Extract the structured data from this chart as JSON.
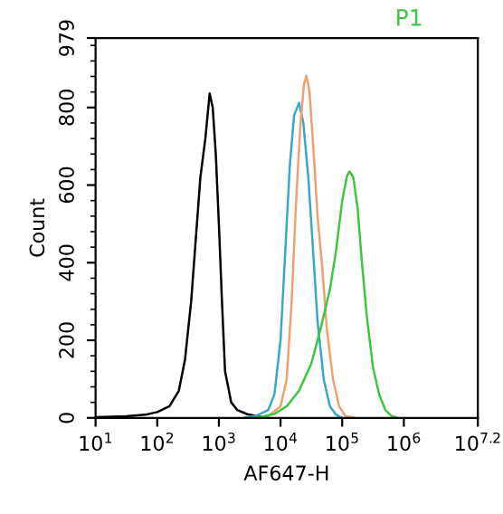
{
  "chart_data": {
    "type": "line",
    "xlabel": "AF647-H",
    "ylabel": "Count",
    "log": "x",
    "grid": false,
    "legend": false,
    "xlim": [
      10,
      15848932
    ],
    "ylim": [
      0,
      979
    ],
    "xticks": [
      {
        "value": 10,
        "label": "10$^{1}$"
      },
      {
        "value": 100,
        "label": "10$^{2}$"
      },
      {
        "value": 1000,
        "label": "10$^{3}$"
      },
      {
        "value": 10000,
        "label": "10$^{4}$"
      },
      {
        "value": 100000,
        "label": "10$^{5}$"
      },
      {
        "value": 1000000,
        "label": "10$^{6}$"
      },
      {
        "value": 15848932,
        "label": "10$^{7.2}$"
      }
    ],
    "yticks": [
      0,
      200,
      400,
      600,
      800,
      979
    ],
    "series": [
      {
        "color": "#000000",
        "x": [
          10,
          31.6,
          63.1,
          100,
          158,
          224,
          282,
          355,
          417,
          501,
          603,
          708,
          794,
          891,
          1000,
          1122,
          1259,
          1585,
          1995,
          2818,
          3981,
          6310
        ],
        "values": [
          2,
          4,
          8,
          15,
          30,
          70,
          150,
          300,
          450,
          620,
          720,
          836,
          800,
          680,
          500,
          300,
          120,
          40,
          20,
          10,
          5,
          0
        ]
      },
      {
        "color": "#3aa8c8",
        "x": [
          2512,
          3981,
          6310,
          7943,
          10000,
          11220,
          12589,
          14125,
          16596,
          19953,
          23442,
          28184,
          33113,
          39811,
          50119,
          63096,
          79433,
          100000
        ],
        "values": [
          0,
          5,
          20,
          60,
          200,
          350,
          500,
          650,
          780,
          812,
          760,
          620,
          450,
          250,
          100,
          30,
          8,
          0
        ]
      },
      {
        "color": "#f0a070",
        "x": [
          3981,
          6310,
          10000,
          12589,
          15136,
          17783,
          20893,
          23988,
          26303,
          29512,
          33884,
          39811,
          47863,
          56234,
          70795,
          89125,
          112202,
          158489
        ],
        "values": [
          0,
          5,
          30,
          100,
          300,
          550,
          750,
          860,
          882,
          840,
          700,
          520,
          380,
          230,
          100,
          30,
          5,
          0
        ]
      },
      {
        "name": "P1",
        "color": "#3cc83c",
        "x": [
          3981,
          7943,
          12589,
          19953,
          31623,
          44668,
          63096,
          79433,
          100000,
          120226,
          131826,
          151356,
          177828,
          208930,
          251189,
          316228,
          398107,
          501187,
          630957,
          794328
        ],
        "values": [
          0,
          10,
          30,
          70,
          140,
          230,
          330,
          430,
          560,
          625,
          635,
          620,
          540,
          400,
          260,
          130,
          60,
          20,
          5,
          0
        ]
      }
    ]
  }
}
